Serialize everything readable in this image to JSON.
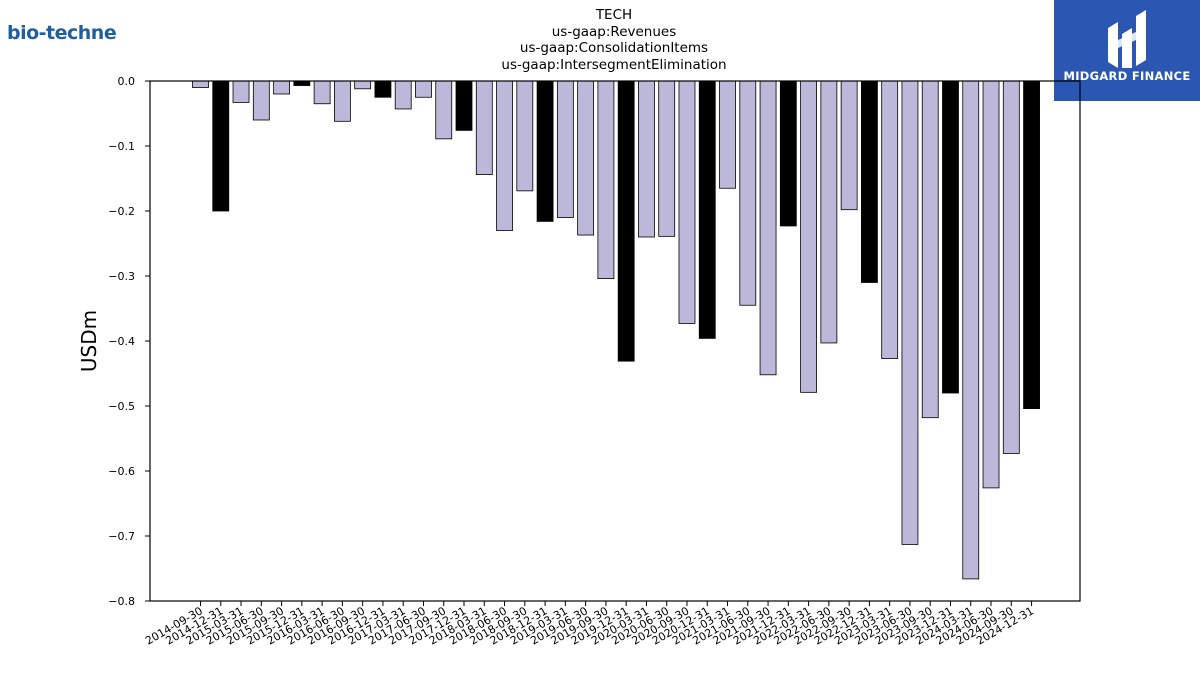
{
  "header": {
    "company_logo_text": "bio-techne",
    "brand_logo_text": "MIDGARD FINANCE",
    "title_lines": [
      "TECH",
      "us-gaap:Revenues",
      "us-gaap:ConsolidationItems",
      "us-gaap:IntersegmentElimination"
    ]
  },
  "colors": {
    "bar_normal": "#bcb8da",
    "bar_q4": "#000000",
    "brand_blue": "#2b57b3",
    "logo_text": "#1f5fa0"
  },
  "chart_data": {
    "type": "bar",
    "title": "TECH\nus-gaap:Revenues\nus-gaap:ConsolidationItems\nus-gaap:IntersegmentElimination",
    "xlabel": "",
    "ylabel": "USDm",
    "ylim": [
      -0.8,
      0.0
    ],
    "yticks": [
      0.0,
      -0.1,
      -0.2,
      -0.3,
      -0.4,
      -0.5,
      -0.6,
      -0.7,
      -0.8
    ],
    "ytick_labels": [
      "0.0",
      "−0.1",
      "−0.2",
      "−0.3",
      "−0.4",
      "−0.5",
      "−0.6",
      "−0.7",
      "−0.8"
    ],
    "grid": false,
    "categories": [
      "2014-09-30",
      "2014-12-31",
      "2015-03-31",
      "2015-06-30",
      "2015-09-30",
      "2015-12-31",
      "2016-03-31",
      "2016-06-30",
      "2016-09-30",
      "2016-12-31",
      "2017-03-31",
      "2017-06-30",
      "2017-09-30",
      "2017-12-31",
      "2018-03-31",
      "2018-06-30",
      "2018-09-30",
      "2018-12-31",
      "2019-03-31",
      "2019-06-30",
      "2019-09-30",
      "2019-12-31",
      "2020-03-31",
      "2020-06-30",
      "2020-09-30",
      "2020-12-31",
      "2021-03-31",
      "2021-06-30",
      "2021-09-30",
      "2021-12-31",
      "2022-03-31",
      "2022-06-30",
      "2022-09-30",
      "2022-12-31",
      "2023-03-31",
      "2023-06-30",
      "2023-09-30",
      "2023-12-31",
      "2024-03-31",
      "2024-06-30",
      "2024-09-30",
      "2024-12-31"
    ],
    "values": [
      -0.01,
      -0.2,
      -0.033,
      -0.06,
      -0.02,
      -0.007,
      -0.035,
      -0.062,
      -0.012,
      -0.025,
      -0.043,
      -0.025,
      -0.089,
      -0.076,
      -0.144,
      -0.23,
      -0.169,
      -0.216,
      -0.21,
      -0.237,
      -0.304,
      -0.431,
      -0.24,
      -0.239,
      -0.373,
      -0.396,
      -0.165,
      -0.345,
      -0.452,
      -0.223,
      -0.479,
      -0.403,
      -0.198,
      -0.31,
      -0.427,
      -0.713,
      -0.518,
      -0.48,
      -0.766,
      -0.626,
      -0.573,
      -0.504
    ],
    "highlight": [
      false,
      true,
      false,
      false,
      false,
      true,
      false,
      false,
      false,
      true,
      false,
      false,
      false,
      true,
      false,
      false,
      false,
      true,
      false,
      false,
      false,
      true,
      false,
      false,
      false,
      true,
      false,
      false,
      false,
      true,
      false,
      false,
      false,
      true,
      false,
      false,
      false,
      true,
      false,
      false,
      false,
      true
    ]
  }
}
